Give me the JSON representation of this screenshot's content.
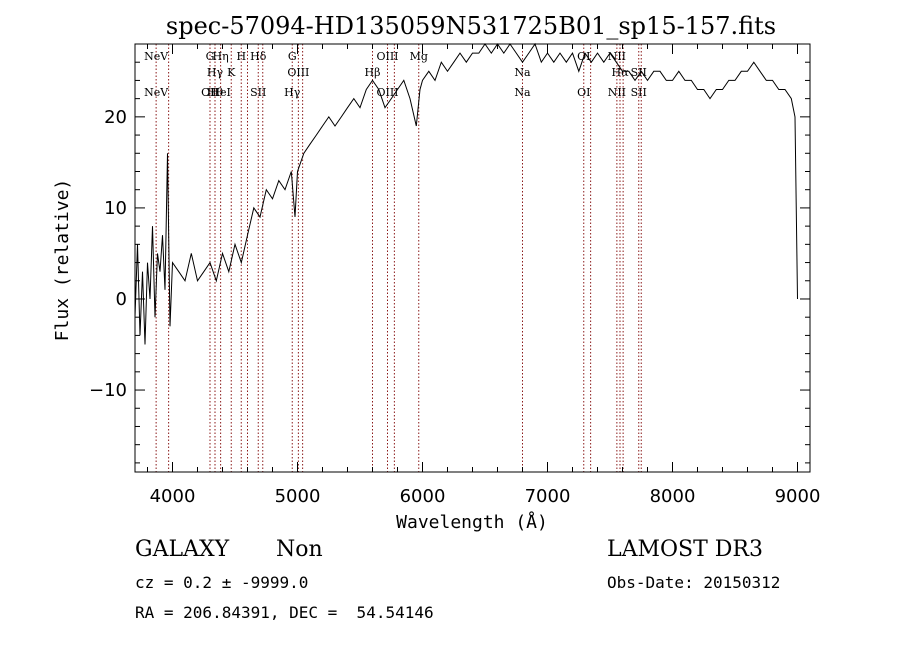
{
  "chart_data": {
    "type": "line",
    "title": "spec-57094-HD135059N531725B01_sp15-157.fits",
    "xlabel": "Wavelength (Å)",
    "ylabel": "Flux (relative)",
    "xlim": [
      3700,
      9100
    ],
    "ylim": [
      -19,
      28
    ],
    "x_ticks": [
      4000,
      5000,
      6000,
      7000,
      8000,
      9000
    ],
    "y_ticks": [
      -10,
      0,
      10,
      20
    ],
    "grid": false,
    "series": [
      {
        "x": [
          3700,
          3720,
          3740,
          3760,
          3780,
          3800,
          3820,
          3840,
          3860,
          3880,
          3900,
          3920,
          3940,
          3960,
          3980,
          4000,
          4050,
          4100,
          4150,
          4200,
          4250,
          4300,
          4350,
          4400,
          4450,
          4500,
          4550,
          4600,
          4650,
          4700,
          4750,
          4800,
          4850,
          4900,
          4950,
          4980,
          5000,
          5050,
          5100,
          5150,
          5200,
          5250,
          5300,
          5350,
          5400,
          5450,
          5500,
          5550,
          5600,
          5650,
          5700,
          5750,
          5800,
          5850,
          5900,
          5950,
          5980,
          6000,
          6050,
          6100,
          6150,
          6200,
          6250,
          6300,
          6350,
          6400,
          6450,
          6500,
          6550,
          6600,
          6650,
          6700,
          6750,
          6800,
          6850,
          6900,
          6950,
          7000,
          7050,
          7100,
          7150,
          7200,
          7250,
          7300,
          7350,
          7400,
          7450,
          7500,
          7550,
          7600,
          7650,
          7700,
          7750,
          7800,
          7850,
          7900,
          7950,
          8000,
          8050,
          8100,
          8150,
          8200,
          8250,
          8300,
          8350,
          8400,
          8450,
          8500,
          8550,
          8600,
          8650,
          8700,
          8750,
          8800,
          8850,
          8900,
          8950,
          8980,
          9000
        ],
        "y": [
          -2,
          6,
          -4,
          3,
          -5,
          4,
          0,
          8,
          -2,
          5,
          3,
          7,
          1,
          16,
          -3,
          4,
          3,
          2,
          5,
          2,
          3,
          4,
          2,
          5,
          3,
          6,
          4,
          7,
          10,
          9,
          12,
          11,
          13,
          12,
          14,
          9,
          14,
          16,
          17,
          18,
          19,
          20,
          19,
          20,
          21,
          22,
          21,
          23,
          24,
          23,
          21,
          22,
          23,
          24,
          22,
          19,
          23,
          24,
          25,
          24,
          26,
          25,
          26,
          27,
          26,
          27,
          27,
          28,
          27,
          28,
          27,
          28,
          27,
          26,
          27,
          28,
          26,
          27,
          26,
          27,
          26,
          27,
          25,
          27,
          26,
          27,
          26,
          27,
          26,
          25,
          25,
          24,
          25,
          24,
          25,
          25,
          24,
          24,
          25,
          24,
          24,
          23,
          23,
          22,
          23,
          23,
          24,
          24,
          25,
          25,
          26,
          25,
          24,
          24,
          23,
          23,
          22,
          20,
          0
        ]
      }
    ],
    "lines": [
      {
        "x": 3869,
        "top": "NeV",
        "bottom": "NeV"
      },
      {
        "x": 3969,
        "top": "",
        "bottom": ""
      },
      {
        "x": 4300,
        "top": "G",
        "bottom": "OII"
      },
      {
        "x": 4340,
        "top": "Hγ",
        "bottom": "Hθ"
      },
      {
        "x": 4385,
        "top": "Hη",
        "bottom": "HeI"
      },
      {
        "x": 4470,
        "top": "K",
        "bottom": ""
      },
      {
        "x": 4550,
        "top": "H",
        "bottom": ""
      },
      {
        "x": 4600,
        "top": "",
        "bottom": ""
      },
      {
        "x": 4686,
        "top": "Hδ",
        "bottom": "SII"
      },
      {
        "x": 4722,
        "top": "",
        "bottom": ""
      },
      {
        "x": 4958,
        "top": "G",
        "bottom": "Hγ"
      },
      {
        "x": 5007,
        "top": "OIII",
        "bottom": ""
      },
      {
        "x": 5041,
        "top": "",
        "bottom": ""
      },
      {
        "x": 5600,
        "top": "Hβ",
        "bottom": ""
      },
      {
        "x": 5720,
        "top": "OIII",
        "bottom": "OIII"
      },
      {
        "x": 5775,
        "top": "",
        "bottom": ""
      },
      {
        "x": 5970,
        "top": "Mg",
        "bottom": ""
      },
      {
        "x": 6800,
        "top": "Na",
        "bottom": "Na"
      },
      {
        "x": 7290,
        "top": "OI",
        "bottom": "OI"
      },
      {
        "x": 7345,
        "top": "",
        "bottom": ""
      },
      {
        "x": 7555,
        "top": "NII",
        "bottom": "NII"
      },
      {
        "x": 7580,
        "top": "Hα",
        "bottom": ""
      },
      {
        "x": 7605,
        "top": "",
        "bottom": ""
      },
      {
        "x": 7730,
        "top": "SII",
        "bottom": "SII"
      },
      {
        "x": 7750,
        "top": "",
        "bottom": ""
      }
    ]
  },
  "info": {
    "class": "GALAXY",
    "subclass": "Non",
    "survey": "LAMOST DR3",
    "cz": "cz = 0.2 ± -9999.0",
    "obs_date": "Obs-Date: 20150312",
    "coords": "RA = 206.84391, DEC =  54.54146"
  }
}
